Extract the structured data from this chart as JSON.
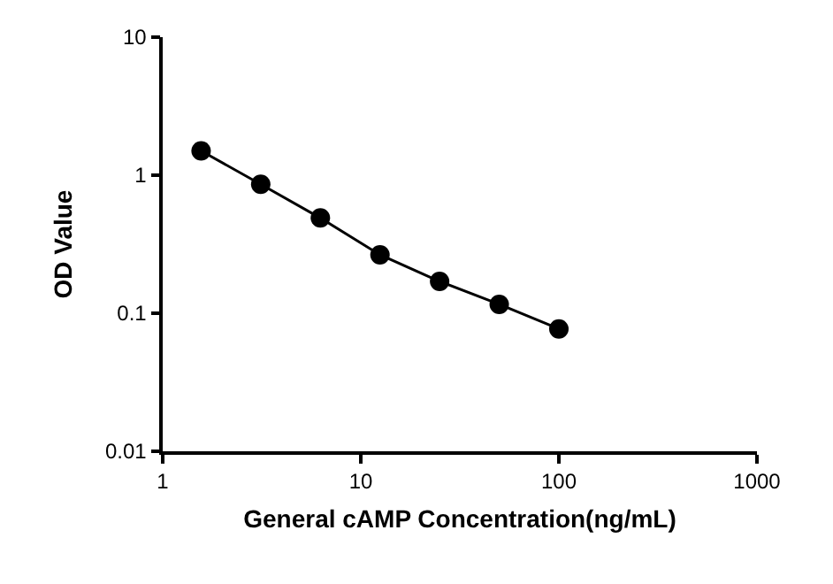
{
  "chart_data": {
    "type": "line",
    "xlabel": "General cAMP Concentration(ng/mL)",
    "ylabel": "OD Value",
    "x": [
      1.5625,
      3.125,
      6.25,
      12.5,
      25,
      50,
      100
    ],
    "series": [
      {
        "color": "#000000",
        "values": [
          1.5,
          0.86,
          0.49,
          0.265,
          0.17,
          0.116,
          0.077
        ]
      }
    ],
    "log": "xy",
    "xlim": [
      1,
      1000
    ],
    "xticks": [
      1,
      10,
      100,
      1000
    ],
    "ylim": [
      0.01,
      10
    ],
    "yticks": [
      0.01,
      0.1,
      1,
      10
    ],
    "grid": false,
    "legend": false,
    "marker": "circle",
    "line_style": "solid"
  }
}
